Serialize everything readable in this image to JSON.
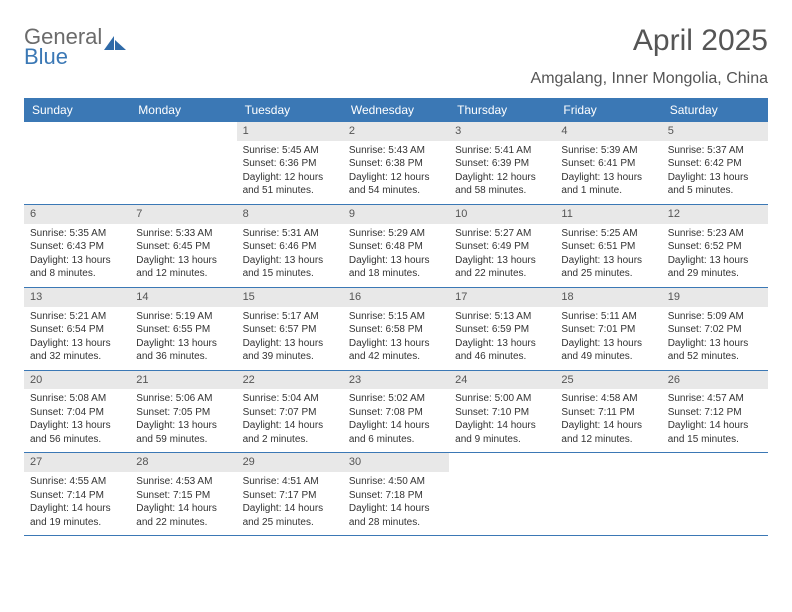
{
  "brand": {
    "word1": "General",
    "word2": "Blue"
  },
  "title": "April 2025",
  "location": "Amgalang, Inner Mongolia, China",
  "colors": {
    "header_bg": "#3b78b5",
    "header_text": "#ffffff",
    "daynum_bg": "#e8e8e8",
    "rule": "#3b78b5",
    "body_text": "#333333"
  },
  "weekdays": [
    "Sunday",
    "Monday",
    "Tuesday",
    "Wednesday",
    "Thursday",
    "Friday",
    "Saturday"
  ],
  "weeks": [
    [
      null,
      null,
      {
        "n": "1",
        "sr": "Sunrise: 5:45 AM",
        "ss": "Sunset: 6:36 PM",
        "dl": "Daylight: 12 hours and 51 minutes."
      },
      {
        "n": "2",
        "sr": "Sunrise: 5:43 AM",
        "ss": "Sunset: 6:38 PM",
        "dl": "Daylight: 12 hours and 54 minutes."
      },
      {
        "n": "3",
        "sr": "Sunrise: 5:41 AM",
        "ss": "Sunset: 6:39 PM",
        "dl": "Daylight: 12 hours and 58 minutes."
      },
      {
        "n": "4",
        "sr": "Sunrise: 5:39 AM",
        "ss": "Sunset: 6:41 PM",
        "dl": "Daylight: 13 hours and 1 minute."
      },
      {
        "n": "5",
        "sr": "Sunrise: 5:37 AM",
        "ss": "Sunset: 6:42 PM",
        "dl": "Daylight: 13 hours and 5 minutes."
      }
    ],
    [
      {
        "n": "6",
        "sr": "Sunrise: 5:35 AM",
        "ss": "Sunset: 6:43 PM",
        "dl": "Daylight: 13 hours and 8 minutes."
      },
      {
        "n": "7",
        "sr": "Sunrise: 5:33 AM",
        "ss": "Sunset: 6:45 PM",
        "dl": "Daylight: 13 hours and 12 minutes."
      },
      {
        "n": "8",
        "sr": "Sunrise: 5:31 AM",
        "ss": "Sunset: 6:46 PM",
        "dl": "Daylight: 13 hours and 15 minutes."
      },
      {
        "n": "9",
        "sr": "Sunrise: 5:29 AM",
        "ss": "Sunset: 6:48 PM",
        "dl": "Daylight: 13 hours and 18 minutes."
      },
      {
        "n": "10",
        "sr": "Sunrise: 5:27 AM",
        "ss": "Sunset: 6:49 PM",
        "dl": "Daylight: 13 hours and 22 minutes."
      },
      {
        "n": "11",
        "sr": "Sunrise: 5:25 AM",
        "ss": "Sunset: 6:51 PM",
        "dl": "Daylight: 13 hours and 25 minutes."
      },
      {
        "n": "12",
        "sr": "Sunrise: 5:23 AM",
        "ss": "Sunset: 6:52 PM",
        "dl": "Daylight: 13 hours and 29 minutes."
      }
    ],
    [
      {
        "n": "13",
        "sr": "Sunrise: 5:21 AM",
        "ss": "Sunset: 6:54 PM",
        "dl": "Daylight: 13 hours and 32 minutes."
      },
      {
        "n": "14",
        "sr": "Sunrise: 5:19 AM",
        "ss": "Sunset: 6:55 PM",
        "dl": "Daylight: 13 hours and 36 minutes."
      },
      {
        "n": "15",
        "sr": "Sunrise: 5:17 AM",
        "ss": "Sunset: 6:57 PM",
        "dl": "Daylight: 13 hours and 39 minutes."
      },
      {
        "n": "16",
        "sr": "Sunrise: 5:15 AM",
        "ss": "Sunset: 6:58 PM",
        "dl": "Daylight: 13 hours and 42 minutes."
      },
      {
        "n": "17",
        "sr": "Sunrise: 5:13 AM",
        "ss": "Sunset: 6:59 PM",
        "dl": "Daylight: 13 hours and 46 minutes."
      },
      {
        "n": "18",
        "sr": "Sunrise: 5:11 AM",
        "ss": "Sunset: 7:01 PM",
        "dl": "Daylight: 13 hours and 49 minutes."
      },
      {
        "n": "19",
        "sr": "Sunrise: 5:09 AM",
        "ss": "Sunset: 7:02 PM",
        "dl": "Daylight: 13 hours and 52 minutes."
      }
    ],
    [
      {
        "n": "20",
        "sr": "Sunrise: 5:08 AM",
        "ss": "Sunset: 7:04 PM",
        "dl": "Daylight: 13 hours and 56 minutes."
      },
      {
        "n": "21",
        "sr": "Sunrise: 5:06 AM",
        "ss": "Sunset: 7:05 PM",
        "dl": "Daylight: 13 hours and 59 minutes."
      },
      {
        "n": "22",
        "sr": "Sunrise: 5:04 AM",
        "ss": "Sunset: 7:07 PM",
        "dl": "Daylight: 14 hours and 2 minutes."
      },
      {
        "n": "23",
        "sr": "Sunrise: 5:02 AM",
        "ss": "Sunset: 7:08 PM",
        "dl": "Daylight: 14 hours and 6 minutes."
      },
      {
        "n": "24",
        "sr": "Sunrise: 5:00 AM",
        "ss": "Sunset: 7:10 PM",
        "dl": "Daylight: 14 hours and 9 minutes."
      },
      {
        "n": "25",
        "sr": "Sunrise: 4:58 AM",
        "ss": "Sunset: 7:11 PM",
        "dl": "Daylight: 14 hours and 12 minutes."
      },
      {
        "n": "26",
        "sr": "Sunrise: 4:57 AM",
        "ss": "Sunset: 7:12 PM",
        "dl": "Daylight: 14 hours and 15 minutes."
      }
    ],
    [
      {
        "n": "27",
        "sr": "Sunrise: 4:55 AM",
        "ss": "Sunset: 7:14 PM",
        "dl": "Daylight: 14 hours and 19 minutes."
      },
      {
        "n": "28",
        "sr": "Sunrise: 4:53 AM",
        "ss": "Sunset: 7:15 PM",
        "dl": "Daylight: 14 hours and 22 minutes."
      },
      {
        "n": "29",
        "sr": "Sunrise: 4:51 AM",
        "ss": "Sunset: 7:17 PM",
        "dl": "Daylight: 14 hours and 25 minutes."
      },
      {
        "n": "30",
        "sr": "Sunrise: 4:50 AM",
        "ss": "Sunset: 7:18 PM",
        "dl": "Daylight: 14 hours and 28 minutes."
      },
      null,
      null,
      null
    ]
  ]
}
